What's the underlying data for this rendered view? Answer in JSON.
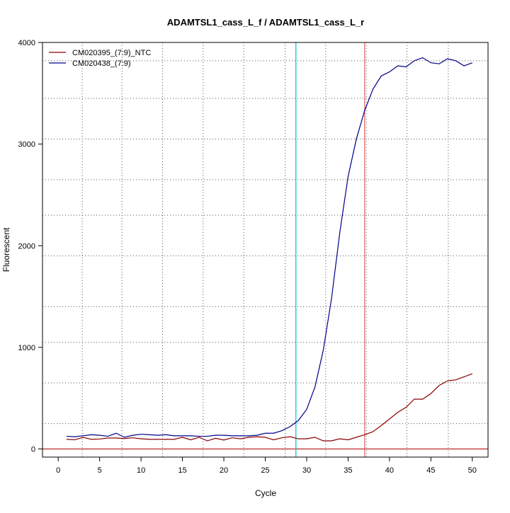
{
  "chart_data": {
    "type": "line",
    "title": "ADAMTSL1_cass_L_f / ADAMTSL1_cass_L_r",
    "xlabel": "Cycle",
    "ylabel": "Fluorescent",
    "xlim": [
      -1.9,
      51.9
    ],
    "ylim": [
      -80,
      4000
    ],
    "x_ticks": [
      0,
      5,
      10,
      15,
      20,
      25,
      30,
      35,
      40,
      45,
      50
    ],
    "y_ticks": [
      0,
      1000,
      2000,
      3000,
      4000
    ],
    "grid": true,
    "legend_position": "top-left",
    "vertical_gridlines": [
      2.9,
      7.7,
      12.6,
      17.5,
      22.4,
      27.4,
      32.3,
      37.2,
      42.1,
      47.1
    ],
    "horizontal_gridlines": [
      250,
      650,
      1050,
      1400,
      1900,
      2300,
      2650,
      3050,
      3450,
      3820
    ],
    "baseline": 0,
    "threshold_lines": [
      {
        "x": 28.7,
        "color": "#00c0d8"
      },
      {
        "x": 37.0,
        "color": "#e06060"
      }
    ],
    "x": [
      1,
      2,
      3,
      4,
      5,
      6,
      7,
      8,
      9,
      10,
      11,
      12,
      13,
      14,
      15,
      16,
      17,
      18,
      19,
      20,
      21,
      22,
      23,
      24,
      25,
      26,
      27,
      28,
      29,
      30,
      31,
      32,
      33,
      34,
      35,
      36,
      37,
      38,
      39,
      40,
      41,
      42,
      43,
      44,
      45,
      46,
      47,
      48,
      49,
      50
    ],
    "series": [
      {
        "name": "CM020395_(7:9)_NTC",
        "color": "#8b0000",
        "values": [
          95,
          90,
          115,
          95,
          98,
          108,
          108,
          103,
          110,
          100,
          95,
          95,
          95,
          95,
          115,
          90,
          115,
          80,
          105,
          88,
          110,
          100,
          115,
          120,
          115,
          90,
          110,
          120,
          100,
          100,
          115,
          80,
          80,
          100,
          90,
          115,
          140,
          170,
          230,
          295,
          360,
          410,
          490,
          490,
          545,
          625,
          670,
          680,
          710,
          740
        ]
      },
      {
        "name": "CM020438_(7:9)",
        "color": "#00008b",
        "values": [
          125,
          120,
          130,
          140,
          135,
          125,
          155,
          115,
          135,
          145,
          140,
          135,
          140,
          130,
          130,
          130,
          125,
          125,
          135,
          135,
          130,
          130,
          130,
          135,
          155,
          155,
          180,
          220,
          280,
          390,
          610,
          970,
          1480,
          2130,
          2680,
          3050,
          3330,
          3540,
          3670,
          3710,
          3770,
          3760,
          3820,
          3850,
          3800,
          3790,
          3840,
          3820,
          3770,
          3800
        ]
      }
    ]
  }
}
